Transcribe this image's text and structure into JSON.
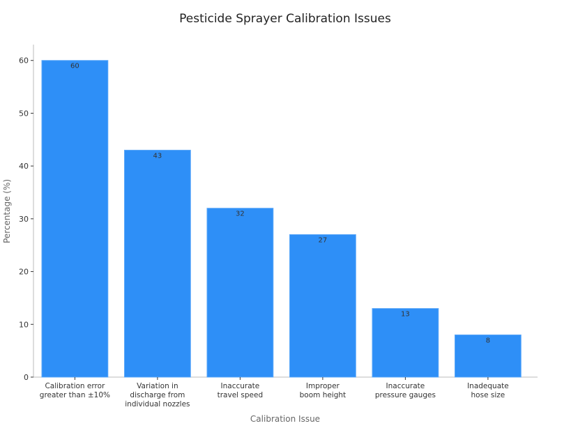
{
  "chart_data": {
    "type": "bar",
    "title": "Pesticide Sprayer Calibration Issues",
    "xlabel": "Calibration Issue",
    "ylabel": "Percentage (%)",
    "categories": [
      [
        "Calibration error",
        "greater than ±10%"
      ],
      [
        "Variation in",
        "discharge from",
        "individual nozzles"
      ],
      [
        "Inaccurate",
        "travel speed"
      ],
      [
        "Improper",
        "boom height"
      ],
      [
        "Inaccurate",
        "pressure gauges"
      ],
      [
        "Inadequate",
        "hose size"
      ]
    ],
    "values": [
      60,
      43,
      32,
      27,
      13,
      8
    ],
    "ylim": [
      0,
      63
    ],
    "yticks": [
      0,
      10,
      20,
      30,
      40,
      50,
      60
    ],
    "grid": false,
    "legend": "none",
    "bar_color": "#2e8ff7",
    "bar_edge_color": "#5aa7f9"
  }
}
